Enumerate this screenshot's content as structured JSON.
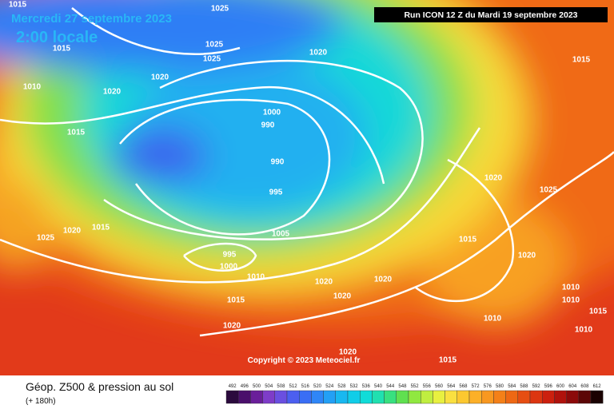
{
  "header": {
    "title": "Mercredi 27 septembre 2023",
    "time": "2:00 locale",
    "run": "Run ICON 12 Z du Mardi 19 septembre 2023"
  },
  "copyright": "Copyright © 2023 Meteociel.fr",
  "footer": {
    "title": "Géop. Z500 & pression au sol",
    "lead": "(+ 180h)"
  },
  "scale": {
    "labels": [
      492,
      496,
      500,
      504,
      508,
      512,
      516,
      520,
      524,
      528,
      532,
      536,
      540,
      544,
      548,
      552,
      556,
      560,
      564,
      568,
      572,
      576,
      580,
      584,
      588,
      592,
      596,
      600,
      604,
      608,
      612
    ],
    "colors": [
      "#2b0a3d",
      "#4a0f6b",
      "#6a1f9a",
      "#7e3cc8",
      "#6a4fe0",
      "#4c5ff0",
      "#3a6ef5",
      "#2f86f7",
      "#23a0f5",
      "#18b8f0",
      "#10cde8",
      "#10dcd8",
      "#20e0b0",
      "#38e080",
      "#60e050",
      "#90e840",
      "#c0ee40",
      "#e8f040",
      "#fae040",
      "#fcc830",
      "#fcb028",
      "#f89820",
      "#f48018",
      "#ee6814",
      "#e64e12",
      "#dc3610",
      "#cc200e",
      "#b0120c",
      "#8c0a0a",
      "#5c0606",
      "#1a0202"
    ]
  },
  "isobar_labels": [
    1015,
    1025,
    1015,
    1025,
    1025,
    1020,
    1015,
    1020,
    1010,
    1020,
    1000,
    990,
    1015,
    990,
    995,
    1020,
    1025,
    1025,
    1020,
    1015,
    1005,
    1015,
    995,
    1020,
    1000,
    1010,
    1020,
    1020,
    1010,
    1020,
    1010,
    1015,
    1015,
    1010,
    1020,
    1010,
    1020,
    1015
  ]
}
